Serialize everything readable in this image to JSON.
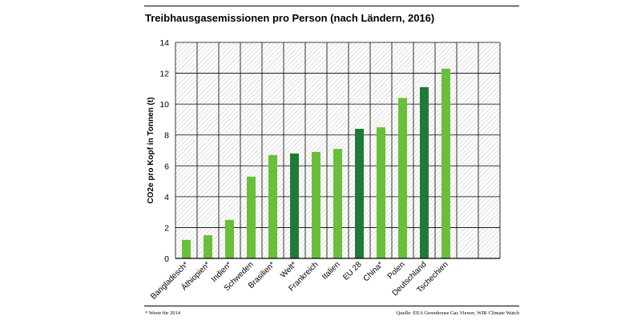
{
  "title": "Treibhausgasemissionen pro Person (nach Ländern, 2016)",
  "footnote": "* Werte für 2014",
  "source": "Quelle: EEA Greenhouse Gas Viewer, WIR Climate Watch",
  "colors": {
    "light": "#6abf3a",
    "dark": "#1e7b35",
    "hatch": "#bdbdbd",
    "grid": "#000000"
  },
  "chart_data": {
    "type": "bar",
    "title": "Treibhausgasemissionen pro Person (nach Ländern, 2016)",
    "xlabel": "",
    "ylabel": "CO2e pro Kopf in Tonnen (t)",
    "ylim": [
      0,
      14
    ],
    "yticks": [
      0,
      2,
      4,
      6,
      8,
      10,
      12,
      14
    ],
    "grid": true,
    "categories": [
      "Bangladesch*",
      "Äthiopien*",
      "Indien*",
      "Schweden",
      "Brasilien*",
      "Welt*",
      "Frankreich",
      "Italien",
      "EU 28",
      "China*",
      "Polen",
      "Deutschland",
      "Tschechien"
    ],
    "values": [
      1.2,
      1.5,
      2.5,
      5.3,
      6.7,
      6.8,
      6.9,
      7.1,
      8.4,
      8.5,
      10.4,
      11.1,
      12.3
    ],
    "highlight": [
      "light",
      "light",
      "light",
      "light",
      "light",
      "dark",
      "light",
      "light",
      "dark",
      "light",
      "light",
      "dark",
      "light"
    ],
    "empty_slots": 2
  }
}
